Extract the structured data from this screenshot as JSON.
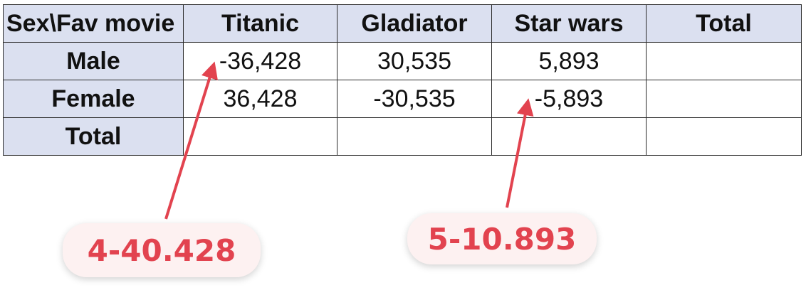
{
  "table": {
    "corner_header": "Sex\\Fav movie",
    "columns": [
      "Titanic",
      "Gladiator",
      "Star wars",
      "Total"
    ],
    "rows": [
      {
        "label": "Male",
        "cells": [
          "-36,428",
          "30,535",
          "5,893",
          ""
        ]
      },
      {
        "label": "Female",
        "cells": [
          "36,428",
          "-30,535",
          "-5,893",
          ""
        ]
      },
      {
        "label": "Total",
        "cells": [
          "",
          "",
          "",
          ""
        ]
      }
    ]
  },
  "annotations": {
    "callout_1": "4-40.428",
    "callout_2": "5-10.893",
    "color": "#e2434f"
  }
}
